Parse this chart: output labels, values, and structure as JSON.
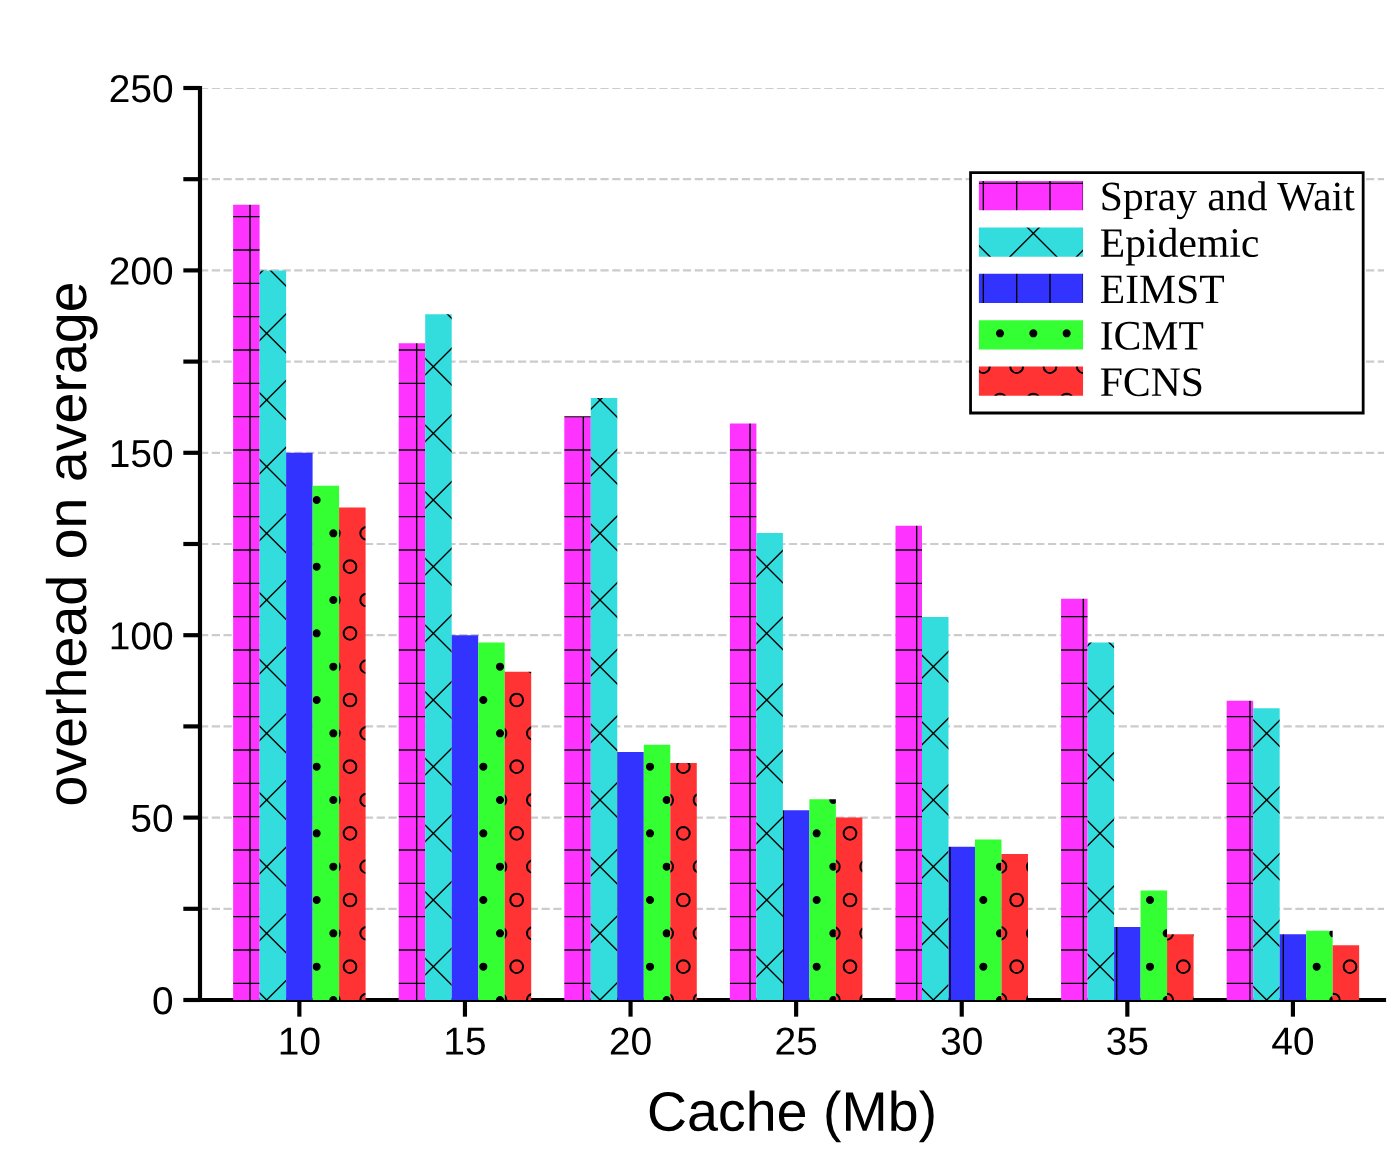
{
  "chart_data": {
    "type": "bar",
    "xlabel": "Cache (Mb)",
    "ylabel": "overhead on average",
    "categories": [
      "10",
      "15",
      "20",
      "25",
      "30",
      "35",
      "40"
    ],
    "series": [
      {
        "name": "Spray and Wait",
        "color": "#ff33ff",
        "values": [
          218,
          180,
          160,
          158,
          130,
          110,
          82
        ]
      },
      {
        "name": "Epidemic",
        "color": "#33dddd",
        "values": [
          200,
          188,
          165,
          128,
          105,
          98,
          80
        ]
      },
      {
        "name": "EIMST",
        "color": "#3333ff",
        "values": [
          150,
          100,
          68,
          52,
          42,
          20,
          18
        ]
      },
      {
        "name": "ICMT",
        "color": "#33ff33",
        "values": [
          141,
          98,
          70,
          55,
          44,
          30,
          19
        ]
      },
      {
        "name": "FCNS",
        "color": "#ff3333",
        "values": [
          135,
          90,
          65,
          50,
          40,
          18,
          15
        ]
      }
    ],
    "ylim": [
      0,
      250
    ],
    "yticks": [
      0,
      {
        "value": 25,
        "label": null
      },
      50,
      {
        "value": 75,
        "label": null
      },
      100,
      {
        "value": 125,
        "label": null
      },
      150,
      {
        "value": 175,
        "label": null
      },
      200,
      {
        "value": 225,
        "label": null
      },
      250
    ],
    "grid": "y",
    "legend": "top right"
  }
}
